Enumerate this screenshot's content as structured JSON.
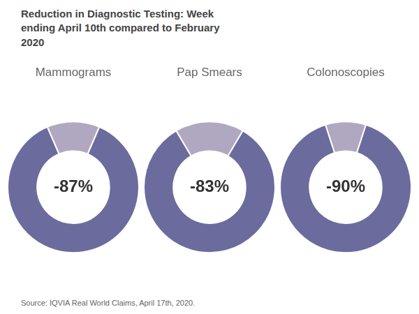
{
  "title": "Reduction in Diagnostic Testing: Week\nending April 10th compared to February\n2020",
  "annotations": [
    "Source: IQVIA Real World Claims, April 17th, 2020."
  ],
  "chart_data": [
    {
      "type": "doughnut",
      "title": "Mammograms",
      "values": [
        13,
        87
      ],
      "colors": [
        "#b0a8c0",
        "#6b6b9e"
      ],
      "annotations": [
        "-87%"
      ]
    },
    {
      "type": "doughnut",
      "title": "Pap Smears",
      "values": [
        17,
        83
      ],
      "colors": [
        "#b0a8c0",
        "#6b6b9e"
      ],
      "annotations": [
        "-83%"
      ]
    },
    {
      "type": "doughnut",
      "title": "Colonoscopies",
      "values": [
        10,
        90
      ],
      "colors": [
        "#b0a8c0",
        "#6b6b9e"
      ],
      "annotations": [
        "-90%"
      ]
    }
  ]
}
